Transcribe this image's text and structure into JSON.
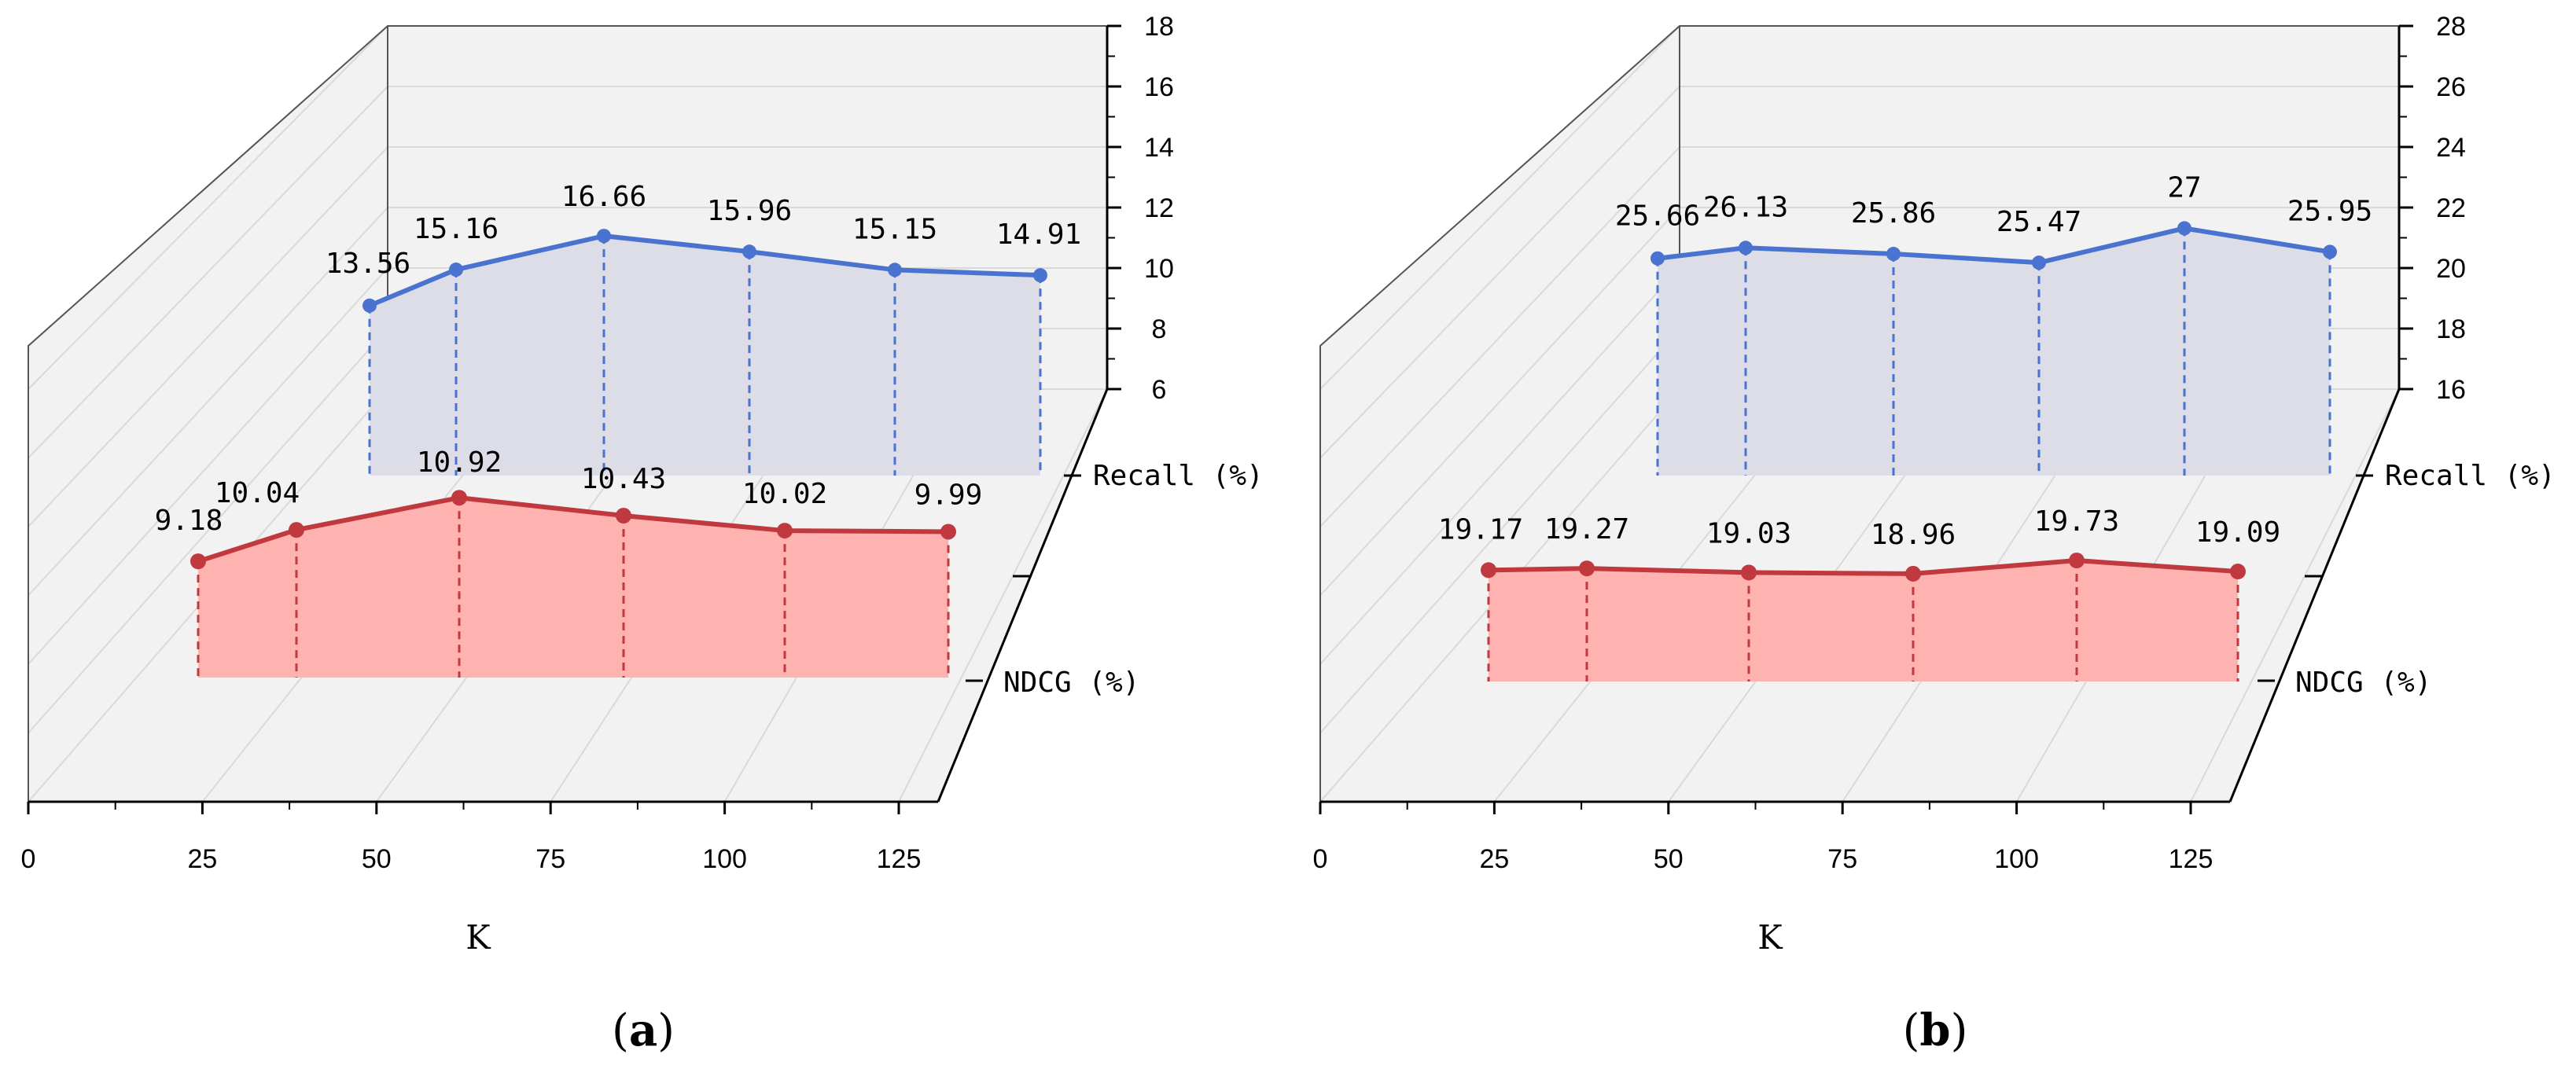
{
  "colors": {
    "recall": "#4a72cf",
    "recall_fill": "#dcdde6",
    "ndcg": "#c0393f",
    "ndcg_fill": "#ffb3b1",
    "pane": "#f2f2f2",
    "grid": "#d9d9d9"
  },
  "chart_data": [
    {
      "type": "line",
      "caption_letter": "a",
      "xlabel": "K",
      "x_ticks": [
        "0",
        "25",
        "50",
        "75",
        "100",
        "125"
      ],
      "y_range": [
        6,
        18
      ],
      "y_ticks": [
        "6",
        "8",
        "10",
        "12",
        "14",
        "16",
        "18"
      ],
      "series_labels": [
        "Recall (%)",
        "NDCG (%)"
      ],
      "series": [
        {
          "name": "Recall (%)",
          "values": [
            13.56,
            15.16,
            16.66,
            15.96,
            15.15,
            14.91
          ],
          "labels": [
            "13.56",
            "15.16",
            "16.66",
            "15.96",
            "15.15",
            "14.91"
          ]
        },
        {
          "name": "NDCG (%)",
          "values": [
            9.18,
            10.04,
            10.92,
            10.43,
            10.02,
            9.99
          ],
          "labels": [
            "9.18",
            "10.04",
            "10.92",
            "10.43",
            "10.02",
            "9.99"
          ]
        }
      ]
    },
    {
      "type": "line",
      "caption_letter": "b",
      "xlabel": "K",
      "x_ticks": [
        "0",
        "25",
        "50",
        "75",
        "100",
        "125"
      ],
      "y_range": [
        16,
        28
      ],
      "y_ticks": [
        "16",
        "18",
        "20",
        "22",
        "24",
        "26",
        "28"
      ],
      "series_labels": [
        "Recall (%)",
        "NDCG (%)"
      ],
      "series": [
        {
          "name": "Recall (%)",
          "values": [
            25.66,
            26.13,
            25.86,
            25.47,
            27,
            25.95
          ],
          "labels": [
            "25.66",
            "26.13",
            "25.86",
            "25.47",
            "27",
            "25.95"
          ]
        },
        {
          "name": "NDCG (%)",
          "values": [
            19.17,
            19.27,
            19.03,
            18.96,
            19.73,
            19.09
          ],
          "labels": [
            "19.17",
            "19.27",
            "19.03",
            "18.96",
            "19.73",
            "19.09"
          ]
        }
      ]
    }
  ]
}
